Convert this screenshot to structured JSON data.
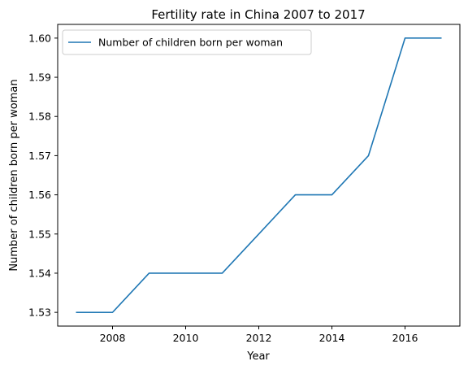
{
  "chart_data": {
    "type": "line",
    "title": "Fertility rate in China 2007 to 2017",
    "xlabel": "Year",
    "ylabel": "Number of children born per woman",
    "x": [
      2007,
      2008,
      2009,
      2010,
      2011,
      2012,
      2013,
      2014,
      2015,
      2016,
      2017
    ],
    "series": [
      {
        "name": "Number of children born per woman",
        "values": [
          1.53,
          1.53,
          1.54,
          1.54,
          1.54,
          1.55,
          1.56,
          1.56,
          1.57,
          1.6,
          1.6
        ]
      }
    ],
    "xlim": [
      2006.5,
      2017.5
    ],
    "ylim": [
      1.5265,
      1.6035
    ],
    "xticks": [
      2008,
      2010,
      2012,
      2014,
      2016
    ],
    "xtick_labels": [
      "2008",
      "2010",
      "2012",
      "2014",
      "2016"
    ],
    "yticks": [
      1.53,
      1.54,
      1.55,
      1.56,
      1.57,
      1.58,
      1.59,
      1.6
    ],
    "ytick_labels": [
      "1.53",
      "1.54",
      "1.55",
      "1.56",
      "1.57",
      "1.58",
      "1.59",
      "1.60"
    ],
    "grid": false,
    "legend_position": "top-left",
    "line_color": "#1f77b4"
  }
}
